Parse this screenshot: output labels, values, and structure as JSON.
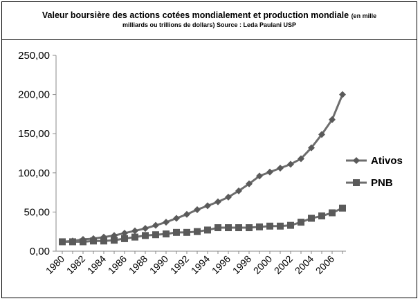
{
  "title": {
    "main": "Valeur boursière des actions cotées mondialement et production mondiale",
    "unit": "(en mille",
    "sub": "milliards ou trillions de dollars) Source : Leda Paulani USP"
  },
  "colors": {
    "series_line": "#6d6d6d",
    "marker": "#5a5a5a",
    "axis": "#8a8a8a"
  },
  "chart_data": {
    "type": "line",
    "x": [
      1980,
      1981,
      1982,
      1983,
      1984,
      1985,
      1986,
      1987,
      1988,
      1989,
      1990,
      1991,
      1992,
      1993,
      1994,
      1995,
      1996,
      1997,
      1998,
      1999,
      2000,
      2001,
      2002,
      2003,
      2004,
      2005,
      2006,
      2007
    ],
    "x_tick_labels": [
      "1980",
      "1982",
      "1984",
      "1986",
      "1988",
      "1990",
      "1992",
      "1994",
      "1996",
      "1998",
      "2000",
      "2002",
      "2004",
      "2006"
    ],
    "y_tick_labels": [
      "0,00",
      "50,00",
      "100,00",
      "150,00",
      "200,00",
      "250,00"
    ],
    "ylim": [
      0,
      250
    ],
    "grid": false,
    "legend_position": "right",
    "series": [
      {
        "name": "Ativos",
        "marker": "diamond",
        "values": [
          12,
          13,
          15,
          16,
          18,
          20,
          23,
          26,
          29,
          33,
          37,
          42,
          47,
          53,
          58,
          63,
          69,
          77,
          86,
          96,
          101,
          106,
          111,
          118,
          132,
          149,
          168,
          200
        ]
      },
      {
        "name": "PNB",
        "marker": "square",
        "values": [
          12,
          12,
          12,
          13,
          13,
          14,
          16,
          18,
          20,
          21,
          22,
          24,
          24,
          25,
          27,
          30,
          30,
          30,
          30,
          31,
          32,
          32,
          33,
          37,
          42,
          45,
          49,
          55
        ]
      }
    ]
  }
}
